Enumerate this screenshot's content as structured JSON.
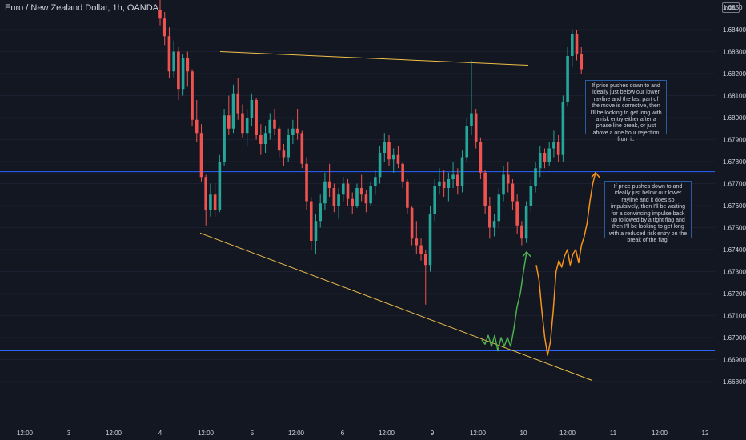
{
  "header": {
    "symbol_title": "Euro / New Zealand Dollar, 1h, OANDA"
  },
  "axis": {
    "currency_badge": "NZD"
  },
  "notes": {
    "note1": "If price pushes down to and ideally just below our lower rayline and the last part of the move is corrective, then I'll be looking to get long with a risk entry either after a phase line break, or just above a one hour rejection from it.",
    "note2": "If price pushes down to and ideally just below our lower rayline and it does so impulsively, then I'll be waiting for a convincing impulse back up followed by a tight flag and then I'll be looking to get long with a reduced risk entry on the break of the flag."
  },
  "colors": {
    "background": "#131722",
    "up": "#26a69a",
    "down": "#ef5350",
    "rayline": "#f0c049",
    "hline": "#2962ff",
    "green_path": "#4caf50",
    "orange_path": "#f7931a",
    "text": "#d1d4dc"
  },
  "chart_data": {
    "type": "candlestick",
    "title": "Euro / New Zealand Dollar, 1h, OANDA",
    "y_axis": {
      "side": "right",
      "range": [
        1.6675,
        1.686
      ],
      "ticks": [
        "1.68400",
        "1.68300",
        "1.68200",
        "1.68100",
        "1.68000",
        "1.67900",
        "1.67800",
        "1.67700",
        "1.67600",
        "1.67500",
        "1.67400",
        "1.67300",
        "1.67200",
        "1.67100",
        "1.67000",
        "1.66900",
        "1.66800"
      ],
      "current_price_label": "1.6850"
    },
    "x_axis": {
      "tick_labels": [
        "12:00",
        "3",
        "12:00",
        "4",
        "12:00",
        "5",
        "12:00",
        "6",
        "12:00",
        "9",
        "12:00",
        "10",
        "12:00",
        "11",
        "12:00",
        "12"
      ],
      "tick_positions": [
        31,
        86,
        142,
        200,
        257,
        315,
        370,
        428,
        483,
        540,
        597,
        654,
        709,
        766,
        824,
        881
      ],
      "time_scale": "index-based (position derived from label sequence)"
    },
    "horizontal_lines": [
      {
        "price": 1.67754,
        "color": "#2962ff"
      },
      {
        "price": 1.6694,
        "color": "#2962ff"
      }
    ],
    "raylines": [
      {
        "name": "upper rayline",
        "from_price": 1.683,
        "to_price": 1.68238,
        "color": "#f0c049"
      },
      {
        "name": "lower rayline",
        "from_price": 1.67475,
        "to_price": 1.66805,
        "color": "#f0c049"
      }
    ],
    "projection_paths": [
      {
        "name": "corrective path",
        "color": "#4caf50",
        "prices": [
          1.6699,
          1.6697,
          1.6701,
          1.6696,
          1.6701,
          1.6694,
          1.67,
          1.6696,
          1.67,
          1.6696,
          1.6704,
          1.6714,
          1.672,
          1.673,
          1.6739
        ]
      },
      {
        "name": "impulsive path",
        "color": "#f7931a",
        "prices": [
          1.6733,
          1.6726,
          1.6712,
          1.67,
          1.6692,
          1.6698,
          1.6712,
          1.673,
          1.6735,
          1.6732,
          1.6737,
          1.674,
          1.6733,
          1.6738,
          1.674,
          1.6734,
          1.6742,
          1.6746,
          1.6752,
          1.6762,
          1.677,
          1.6775
        ]
      }
    ],
    "candles": [
      [
        1.6849,
        1.6855,
        1.6842,
        1.6845
      ],
      [
        1.6845,
        1.6848,
        1.6833,
        1.6837
      ],
      [
        1.6837,
        1.6841,
        1.6818,
        1.6821
      ],
      [
        1.6821,
        1.6835,
        1.6818,
        1.683
      ],
      [
        1.683,
        1.6832,
        1.6808,
        1.6813
      ],
      [
        1.6813,
        1.6829,
        1.681,
        1.6827
      ],
      [
        1.6827,
        1.683,
        1.6814,
        1.6821
      ],
      [
        1.6821,
        1.6822,
        1.6796,
        1.6799
      ],
      [
        1.6799,
        1.6808,
        1.6789,
        1.6793
      ],
      [
        1.6793,
        1.6797,
        1.6771,
        1.6773
      ],
      [
        1.6773,
        1.6774,
        1.6751,
        1.6758
      ],
      [
        1.6758,
        1.677,
        1.6755,
        1.6765
      ],
      [
        1.6765,
        1.677,
        1.6755,
        1.6758
      ],
      [
        1.6758,
        1.6783,
        1.6757,
        1.678
      ],
      [
        1.678,
        1.6804,
        1.6778,
        1.6801
      ],
      [
        1.6801,
        1.681,
        1.6792,
        1.6795
      ],
      [
        1.6795,
        1.6815,
        1.6793,
        1.6811
      ],
      [
        1.6811,
        1.6818,
        1.6799,
        1.6802
      ],
      [
        1.6802,
        1.6806,
        1.6791,
        1.6793
      ],
      [
        1.6793,
        1.6804,
        1.6787,
        1.68
      ],
      [
        1.68,
        1.6811,
        1.6796,
        1.6808
      ],
      [
        1.6808,
        1.6809,
        1.679,
        1.6792
      ],
      [
        1.6792,
        1.6797,
        1.6783,
        1.6788
      ],
      [
        1.6788,
        1.6796,
        1.6784,
        1.6793
      ],
      [
        1.6793,
        1.6802,
        1.679,
        1.6799
      ],
      [
        1.6799,
        1.6804,
        1.6792,
        1.6795
      ],
      [
        1.6795,
        1.6796,
        1.6782,
        1.6785
      ],
      [
        1.6785,
        1.6788,
        1.6778,
        1.6782
      ],
      [
        1.6782,
        1.6795,
        1.678,
        1.6792
      ],
      [
        1.6792,
        1.6799,
        1.6788,
        1.6795
      ],
      [
        1.6795,
        1.6804,
        1.679,
        1.6793
      ],
      [
        1.6793,
        1.6794,
        1.6777,
        1.6779
      ],
      [
        1.6779,
        1.6782,
        1.6758,
        1.6762
      ],
      [
        1.6762,
        1.6764,
        1.674,
        1.6744
      ],
      [
        1.6744,
        1.6756,
        1.6738,
        1.6753
      ],
      [
        1.6753,
        1.6765,
        1.675,
        1.6761
      ],
      [
        1.6761,
        1.6775,
        1.6758,
        1.6771
      ],
      [
        1.6771,
        1.6779,
        1.6764,
        1.6768
      ],
      [
        1.6768,
        1.677,
        1.6757,
        1.676
      ],
      [
        1.676,
        1.6768,
        1.6754,
        1.6765
      ],
      [
        1.6765,
        1.6773,
        1.6762,
        1.677
      ],
      [
        1.677,
        1.6772,
        1.676,
        1.6763
      ],
      [
        1.6763,
        1.6766,
        1.6756,
        1.676
      ],
      [
        1.676,
        1.677,
        1.6759,
        1.6768
      ],
      [
        1.6768,
        1.6774,
        1.6762,
        1.6765
      ],
      [
        1.6765,
        1.6767,
        1.6757,
        1.6761
      ],
      [
        1.6761,
        1.6771,
        1.676,
        1.6769
      ],
      [
        1.6769,
        1.6776,
        1.6765,
        1.6773
      ],
      [
        1.6773,
        1.6787,
        1.677,
        1.6784
      ],
      [
        1.6784,
        1.6793,
        1.678,
        1.6789
      ],
      [
        1.6789,
        1.6792,
        1.6778,
        1.6781
      ],
      [
        1.6781,
        1.6786,
        1.6775,
        1.6783
      ],
      [
        1.6783,
        1.6787,
        1.6777,
        1.6779
      ],
      [
        1.6779,
        1.678,
        1.6768,
        1.6771
      ],
      [
        1.6771,
        1.6772,
        1.6756,
        1.6759
      ],
      [
        1.6759,
        1.676,
        1.6742,
        1.6745
      ],
      [
        1.6745,
        1.6753,
        1.6738,
        1.6742
      ],
      [
        1.6742,
        1.6745,
        1.6735,
        1.6738
      ],
      [
        1.6738,
        1.674,
        1.6715,
        1.6733
      ],
      [
        1.6733,
        1.676,
        1.673,
        1.6756
      ],
      [
        1.6756,
        1.6772,
        1.6753,
        1.6769
      ],
      [
        1.6769,
        1.6777,
        1.6765,
        1.6771
      ],
      [
        1.6771,
        1.6776,
        1.6764,
        1.6768
      ],
      [
        1.6768,
        1.6775,
        1.6762,
        1.6772
      ],
      [
        1.6772,
        1.678,
        1.6768,
        1.6774
      ],
      [
        1.6774,
        1.6777,
        1.6765,
        1.6769
      ],
      [
        1.6769,
        1.6785,
        1.6766,
        1.6782
      ],
      [
        1.6782,
        1.68,
        1.678,
        1.6796
      ],
      [
        1.6796,
        1.6826,
        1.6792,
        1.6802
      ],
      [
        1.6802,
        1.6804,
        1.6786,
        1.6789
      ],
      [
        1.6789,
        1.6791,
        1.6772,
        1.6775
      ],
      [
        1.6775,
        1.6776,
        1.6756,
        1.676
      ],
      [
        1.676,
        1.6764,
        1.6745,
        1.675
      ],
      [
        1.675,
        1.6756,
        1.6746,
        1.6753
      ],
      [
        1.6753,
        1.6768,
        1.675,
        1.6765
      ],
      [
        1.6765,
        1.6778,
        1.6762,
        1.6774
      ],
      [
        1.6774,
        1.678,
        1.6766,
        1.677
      ],
      [
        1.677,
        1.6772,
        1.6758,
        1.6762
      ],
      [
        1.6762,
        1.6765,
        1.6747,
        1.6751
      ],
      [
        1.6751,
        1.6753,
        1.6742,
        1.6745
      ],
      [
        1.6745,
        1.6762,
        1.6743,
        1.676
      ],
      [
        1.676,
        1.6772,
        1.6757,
        1.6769
      ],
      [
        1.6769,
        1.678,
        1.6766,
        1.6777
      ],
      [
        1.6777,
        1.6787,
        1.6773,
        1.6784
      ],
      [
        1.6784,
        1.6786,
        1.6777,
        1.678
      ],
      [
        1.678,
        1.6789,
        1.6778,
        1.6786
      ],
      [
        1.6786,
        1.6794,
        1.6782,
        1.6789
      ],
      [
        1.6789,
        1.6792,
        1.678,
        1.6783
      ],
      [
        1.6783,
        1.681,
        1.678,
        1.6807
      ],
      [
        1.6807,
        1.6832,
        1.6805,
        1.6828
      ],
      [
        1.6828,
        1.684,
        1.6823,
        1.6838
      ],
      [
        1.6838,
        1.684,
        1.6826,
        1.6829
      ],
      [
        1.6829,
        1.6832,
        1.682,
        1.6822
      ]
    ]
  }
}
